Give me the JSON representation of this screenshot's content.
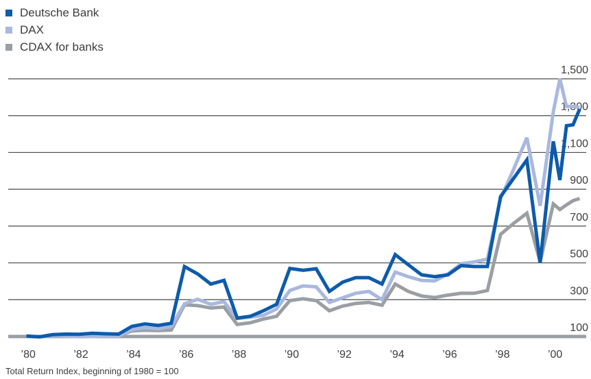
{
  "chart_data": {
    "type": "line",
    "footnote": "Total Return Index, beginning of 1980 = 100",
    "x_tick_labels": [
      "’80",
      "’82",
      "’84",
      "’86",
      "’88",
      "’90",
      "’92",
      "’94",
      "’96",
      "’98",
      "’00"
    ],
    "x_tick_values": [
      1980,
      1982,
      1984,
      1986,
      1988,
      1990,
      1992,
      1994,
      1996,
      1998,
      2000
    ],
    "y_tick_labels": [
      "100",
      "300",
      "500",
      "700",
      "900",
      "1,100",
      "1,300",
      "1,500"
    ],
    "y_tick_values": [
      100,
      300,
      500,
      700,
      900,
      1100,
      1300,
      1500
    ],
    "xlim": [
      1979.7,
      2001.25
    ],
    "ylim": [
      100,
      1500
    ],
    "grid": true,
    "legend_position": "top-left",
    "series": [
      {
        "name": "CDAX for banks",
        "color": "#9a9fa4",
        "x": [
          1980,
          1980.5,
          1981,
          1981.5,
          1982,
          1982.5,
          1983,
          1983.5,
          1984,
          1984.5,
          1985,
          1985.5,
          1986,
          1986.5,
          1987,
          1987.5,
          1988,
          1988.5,
          1989,
          1989.5,
          1990,
          1990.5,
          1991,
          1991.5,
          1992,
          1992.5,
          1993,
          1993.5,
          1994,
          1994.5,
          1995,
          1995.5,
          1996,
          1996.5,
          1997,
          1997.5,
          1998,
          1998.5,
          1999,
          1999.5,
          2000,
          2000.25,
          2000.5,
          2000.75,
          2001
        ],
        "values": [
          100,
          98,
          103,
          104,
          106,
          107,
          106,
          106,
          130,
          134,
          132,
          135,
          272,
          268,
          255,
          260,
          165,
          175,
          195,
          210,
          295,
          305,
          295,
          240,
          265,
          280,
          285,
          270,
          385,
          345,
          320,
          312,
          325,
          335,
          335,
          350,
          655,
          715,
          770,
          505,
          820,
          790,
          815,
          838,
          850
        ]
      },
      {
        "name": "DAX",
        "color": "#a9b8de",
        "x": [
          1980,
          1980.5,
          1981,
          1981.5,
          1982,
          1982.5,
          1983,
          1983.5,
          1984,
          1984.5,
          1985,
          1985.5,
          1986,
          1986.5,
          1987,
          1987.5,
          1988,
          1988.5,
          1989,
          1989.5,
          1990,
          1990.5,
          1991,
          1991.5,
          1992,
          1992.5,
          1993,
          1993.5,
          1994,
          1994.5,
          1995,
          1995.5,
          1996,
          1996.5,
          1997,
          1997.5,
          1998,
          1998.5,
          1999,
          1999.5,
          2000,
          2000.25,
          2000.5,
          2000.75,
          2001
        ],
        "values": [
          102,
          98,
          104,
          102,
          99,
          100,
          103,
          103,
          138,
          148,
          142,
          155,
          278,
          302,
          275,
          290,
          198,
          205,
          215,
          250,
          350,
          375,
          370,
          285,
          310,
          335,
          345,
          300,
          450,
          425,
          405,
          402,
          440,
          495,
          505,
          520,
          850,
          1010,
          1180,
          810,
          1320,
          1500,
          1350,
          1350,
          1345
        ]
      },
      {
        "name": "Deutsche Bank",
        "color": "#0d5bab",
        "x": [
          1980,
          1980.5,
          1981,
          1981.5,
          1982,
          1982.5,
          1983,
          1983.5,
          1984,
          1984.5,
          1985,
          1985.5,
          1986,
          1986.5,
          1987,
          1987.5,
          1988,
          1988.5,
          1989,
          1989.5,
          1990,
          1990.5,
          1991,
          1991.5,
          1992,
          1992.5,
          1993,
          1993.5,
          1994,
          1994.5,
          1995,
          1995.5,
          1996,
          1996.5,
          1997,
          1997.5,
          1998,
          1998.5,
          1999,
          1999.5,
          2000,
          2000.25,
          2000.5,
          2000.75,
          2001
        ],
        "values": [
          103,
          98,
          110,
          113,
          112,
          118,
          115,
          113,
          155,
          168,
          160,
          172,
          480,
          440,
          385,
          405,
          200,
          210,
          240,
          275,
          470,
          460,
          468,
          345,
          395,
          420,
          420,
          385,
          545,
          490,
          435,
          425,
          435,
          485,
          480,
          480,
          860,
          960,
          1060,
          500,
          1160,
          950,
          1245,
          1250,
          1335
        ]
      }
    ]
  }
}
